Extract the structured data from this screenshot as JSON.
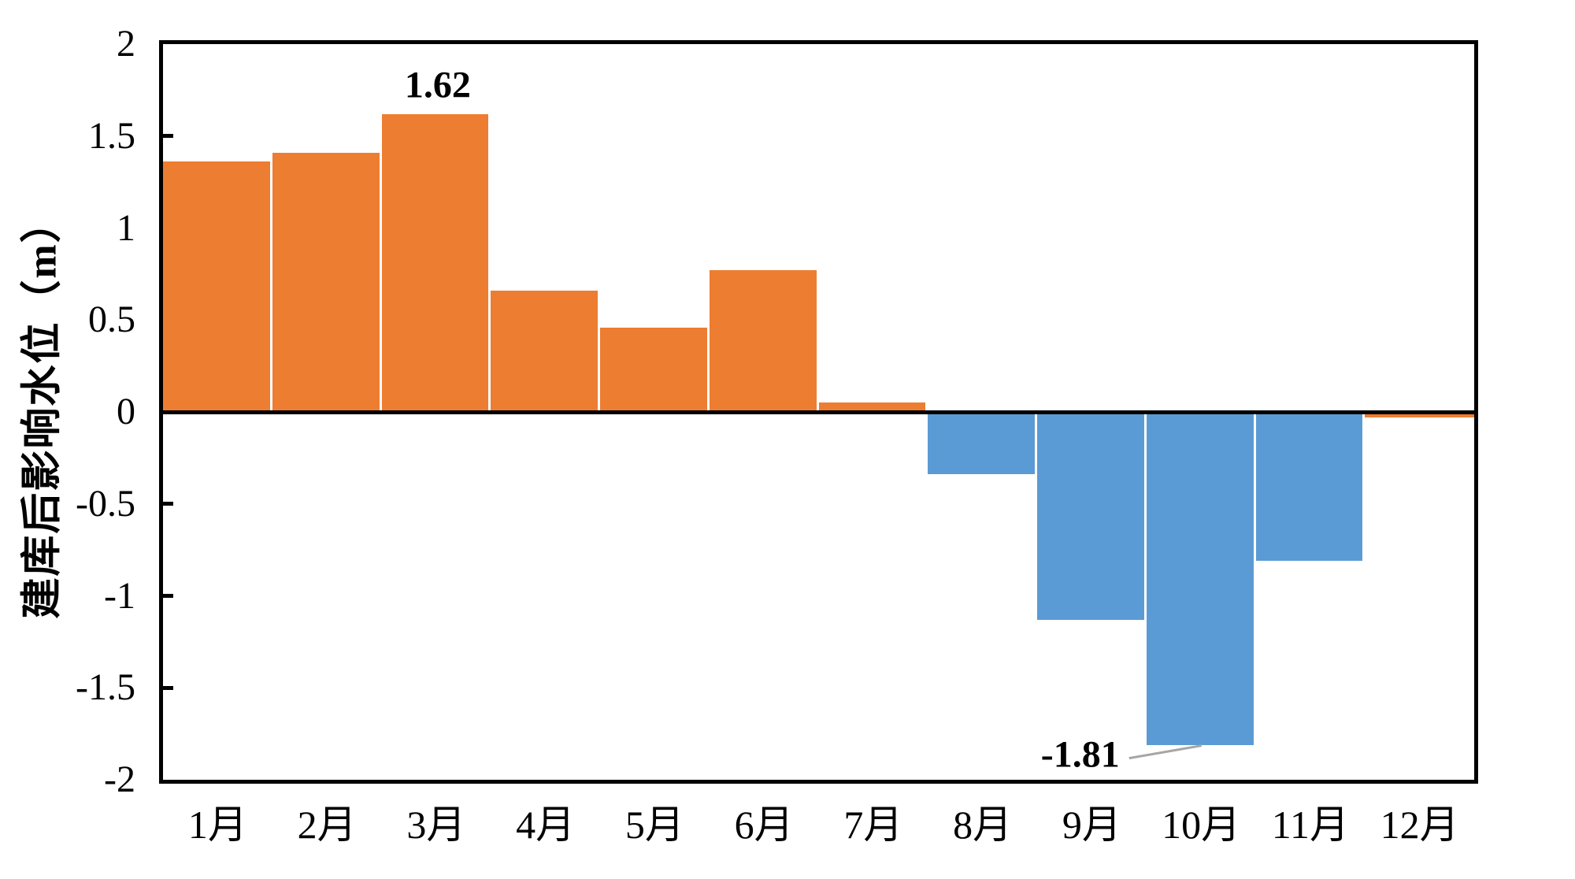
{
  "page": {
    "background": "#FFFFFF"
  },
  "chart_data": {
    "type": "bar",
    "title": "",
    "categories": [
      "1月",
      "2月",
      "3月",
      "4月",
      "5月",
      "6月",
      "7月",
      "8月",
      "9月",
      "10月",
      "11月",
      "12月"
    ],
    "values": [
      1.36,
      1.41,
      1.62,
      0.66,
      0.46,
      0.77,
      0.05,
      -0.34,
      -1.13,
      -1.81,
      -0.81,
      -0.03
    ],
    "bar_colors": [
      "positive",
      "positive",
      "positive",
      "positive",
      "positive",
      "positive",
      "positive",
      "negative",
      "negative",
      "negative",
      "negative",
      "positive"
    ],
    "xlabel": "",
    "ylabel": "建库后影响水位（m）",
    "ylim": [
      -2,
      2
    ],
    "ytick_values": [
      2,
      1.5,
      1,
      0.5,
      0,
      -0.5,
      -1,
      -1.5,
      -2
    ],
    "ytick_labels": [
      "2",
      "1.5",
      "1",
      "0.5",
      "0",
      "-0.5",
      "-1",
      "-1.5",
      "-2"
    ],
    "grid": false,
    "legend": false,
    "annotations": [
      {
        "text": "1.62",
        "bar_index": 2,
        "placement": "above-bar",
        "leader_line": false
      },
      {
        "text": "-1.81",
        "bar_index": 9,
        "placement": "left-of-bar-bottom",
        "leader_line": true
      }
    ],
    "colors": {
      "positive": "#ED7D31",
      "negative": "#5B9BD5",
      "axis": "#000000",
      "text": "#000000",
      "leader_line": "#A6A6A6"
    }
  }
}
